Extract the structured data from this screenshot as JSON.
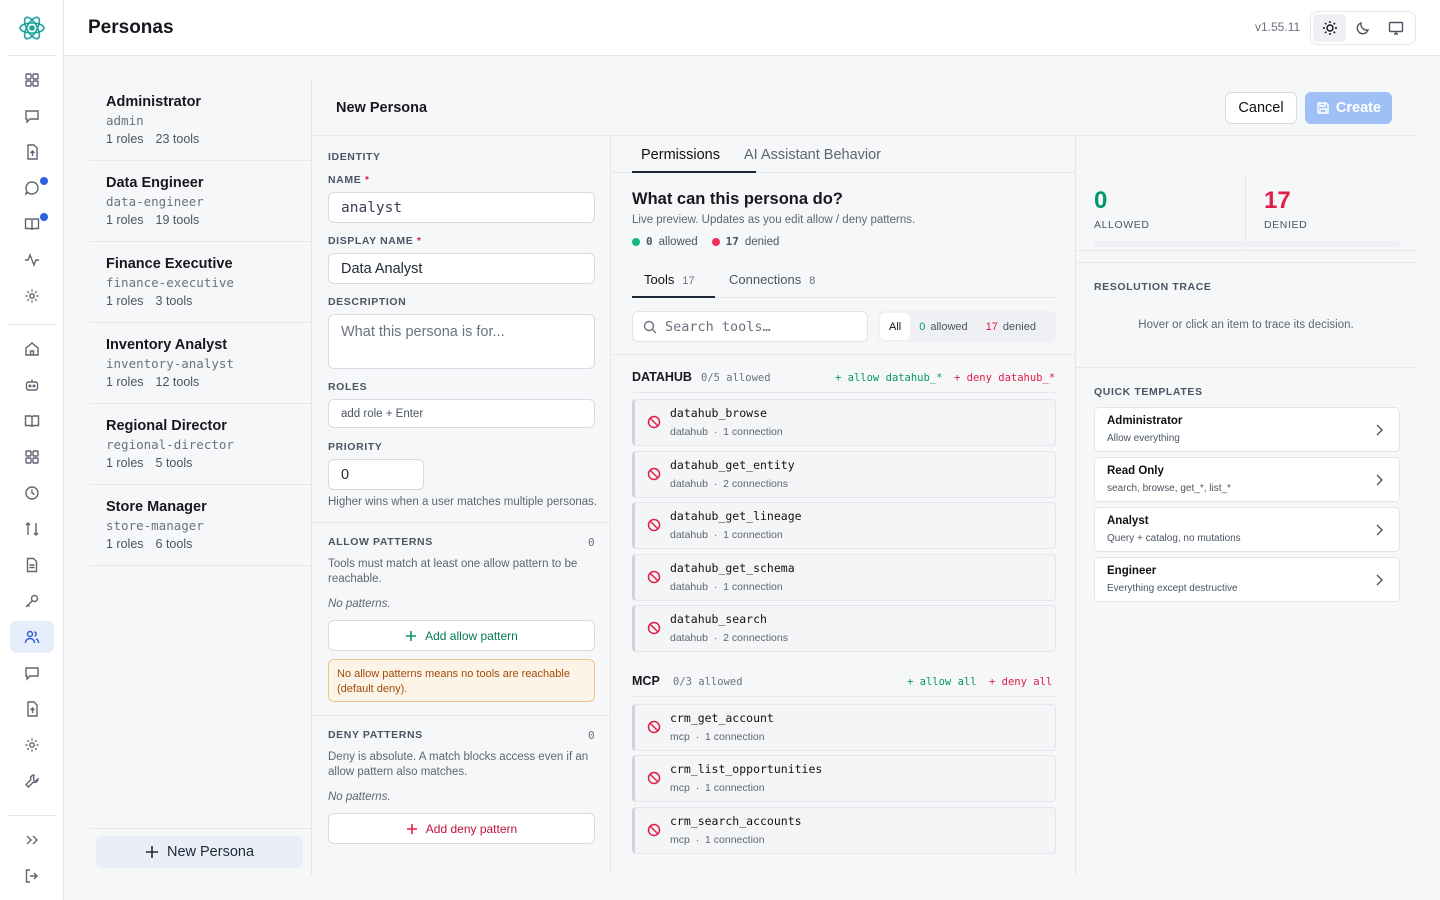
{
  "header": {
    "title": "Personas",
    "version": "v1.55.11",
    "theme_options": [
      "sun-icon",
      "moon-icon",
      "monitor-icon"
    ]
  },
  "rail": {
    "items": [
      "grid-icon",
      "chat-icon",
      "upload-doc-icon",
      "chat-dot-icon",
      "book-dot-icon",
      "activity-icon",
      "gear-icon",
      "home-icon",
      "bot-icon",
      "book-icon",
      "grid-icon",
      "clock-icon",
      "swap-icon",
      "document-icon",
      "key-icon",
      "users-icon",
      "message-icon",
      "doc-plus-icon",
      "settings-icon",
      "wrench-icon"
    ],
    "active": "users-icon"
  },
  "personas": [
    {
      "name": "Administrator",
      "slug": "admin",
      "roles": "1 roles",
      "tools": "23 tools"
    },
    {
      "name": "Data Engineer",
      "slug": "data-engineer",
      "roles": "1 roles",
      "tools": "19 tools"
    },
    {
      "name": "Finance Executive",
      "slug": "finance-executive",
      "roles": "1 roles",
      "tools": "3 tools"
    },
    {
      "name": "Inventory Analyst",
      "slug": "inventory-analyst",
      "roles": "1 roles",
      "tools": "12 tools"
    },
    {
      "name": "Regional Director",
      "slug": "regional-director",
      "roles": "1 roles",
      "tools": "5 tools"
    },
    {
      "name": "Store Manager",
      "slug": "store-manager",
      "roles": "1 roles",
      "tools": "6 tools"
    }
  ],
  "new_persona_label": "New Persona",
  "editor": {
    "title": "New Persona",
    "cancel_label": "Cancel",
    "create_label": "Create"
  },
  "identity": {
    "section": "IDENTITY",
    "name_label": "NAME",
    "name_value": "analyst",
    "display_label": "DISPLAY NAME",
    "display_value": "Data Analyst",
    "desc_label": "DESCRIPTION",
    "desc_placeholder": "What this persona is for...",
    "roles_label": "ROLES",
    "roles_placeholder": "add role + Enter",
    "priority_label": "PRIORITY",
    "priority_value": "0",
    "priority_hint": "Higher wins when a user matches multiple personas.",
    "required_mark": "*"
  },
  "allow": {
    "title": "ALLOW PATTERNS",
    "count": "0",
    "hint": "Tools must match at least one allow pattern to be reachable.",
    "empty": "No patterns.",
    "add_label": "Add allow pattern",
    "warning": "No allow patterns means no tools are reachable (default deny)."
  },
  "deny": {
    "title": "DENY PATTERNS",
    "count": "0",
    "hint": "Deny is absolute. A match blocks access even if an allow pattern also matches.",
    "empty": "No patterns.",
    "add_label": "Add deny pattern"
  },
  "permissions": {
    "tabs": [
      "Permissions",
      "AI Assistant Behavior"
    ],
    "question": "What can this persona do?",
    "subtitle": "Live preview. Updates as you edit allow / deny patterns.",
    "allowed_count": "0",
    "allowed_word": "allowed",
    "denied_count": "17",
    "denied_word": "denied",
    "subtabs": [
      {
        "label": "Tools",
        "count": "17"
      },
      {
        "label": "Connections",
        "count": "8"
      }
    ],
    "search_placeholder": "Search tools…",
    "filter": {
      "all": "All",
      "allowed_count": "0",
      "allowed": "allowed",
      "denied_count": "17",
      "denied": "denied"
    },
    "groups": [
      {
        "name": "DATAHUB",
        "summary": "0/5 allowed",
        "allow_action": "+ allow datahub_*",
        "deny_action": "+ deny datahub_*",
        "tools": [
          {
            "name": "datahub_browse",
            "source": "datahub",
            "conn": "1 connection"
          },
          {
            "name": "datahub_get_entity",
            "source": "datahub",
            "conn": "2 connections"
          },
          {
            "name": "datahub_get_lineage",
            "source": "datahub",
            "conn": "1 connection"
          },
          {
            "name": "datahub_get_schema",
            "source": "datahub",
            "conn": "1 connection"
          },
          {
            "name": "datahub_search",
            "source": "datahub",
            "conn": "2 connections"
          }
        ]
      },
      {
        "name": "MCP",
        "summary": "0/3 allowed",
        "allow_action": "+ allow all",
        "deny_action": "+ deny all",
        "tools": [
          {
            "name": "crm_get_account",
            "source": "mcp",
            "conn": "1 connection"
          },
          {
            "name": "crm_list_opportunities",
            "source": "mcp",
            "conn": "1 connection"
          },
          {
            "name": "crm_search_accounts",
            "source": "mcp",
            "conn": "1 connection"
          }
        ]
      }
    ],
    "separator": "·"
  },
  "stats": {
    "allowed_num": "0",
    "allowed_label": "ALLOWED",
    "denied_num": "17",
    "denied_label": "DENIED",
    "trace_title": "RESOLUTION TRACE",
    "trace_hint": "Hover or click an item to trace its decision.",
    "templates_title": "QUICK TEMPLATES",
    "templates": [
      {
        "title": "Administrator",
        "desc": "Allow everything"
      },
      {
        "title": "Read Only",
        "desc": "search, browse, get_*, list_*"
      },
      {
        "title": "Analyst",
        "desc": "Query + catalog, no mutations"
      },
      {
        "title": "Engineer",
        "desc": "Everything except destructive"
      }
    ]
  },
  "colors": {
    "accent": "#2f5fd0",
    "allowed": "#059669",
    "denied": "#e11d48",
    "create_button": "#9ec0f4"
  }
}
